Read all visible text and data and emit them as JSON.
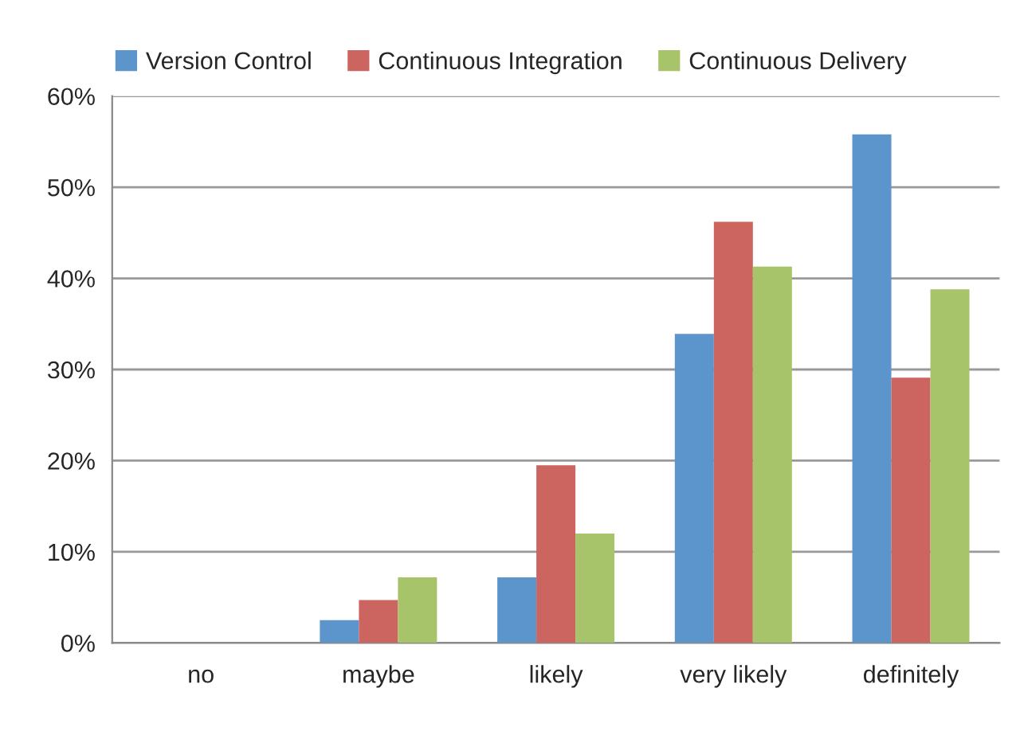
{
  "chart_data": {
    "type": "bar",
    "categories": [
      "no",
      "maybe",
      "likely",
      "very likely",
      "definitely"
    ],
    "series": [
      {
        "name": "Version Control",
        "color": "#5b95cb",
        "values": [
          0,
          2.5,
          7.2,
          33.9,
          55.8
        ]
      },
      {
        "name": "Continuous Integration",
        "color": "#cc6560",
        "values": [
          0,
          4.7,
          19.5,
          46.2,
          29.1
        ]
      },
      {
        "name": "Continuous Delivery",
        "color": "#a8c46a",
        "values": [
          0,
          7.2,
          12.0,
          41.3,
          38.8
        ]
      }
    ],
    "ylim": [
      0,
      60
    ],
    "yticks": [
      {
        "value": 0,
        "label": "0%"
      },
      {
        "value": 10,
        "label": "10%"
      },
      {
        "value": 20,
        "label": "20%"
      },
      {
        "value": 30,
        "label": "30%"
      },
      {
        "value": 40,
        "label": "40%"
      },
      {
        "value": 50,
        "label": "50%"
      },
      {
        "value": 60,
        "label": "60%"
      }
    ],
    "grid": "y",
    "legend": "top"
  }
}
